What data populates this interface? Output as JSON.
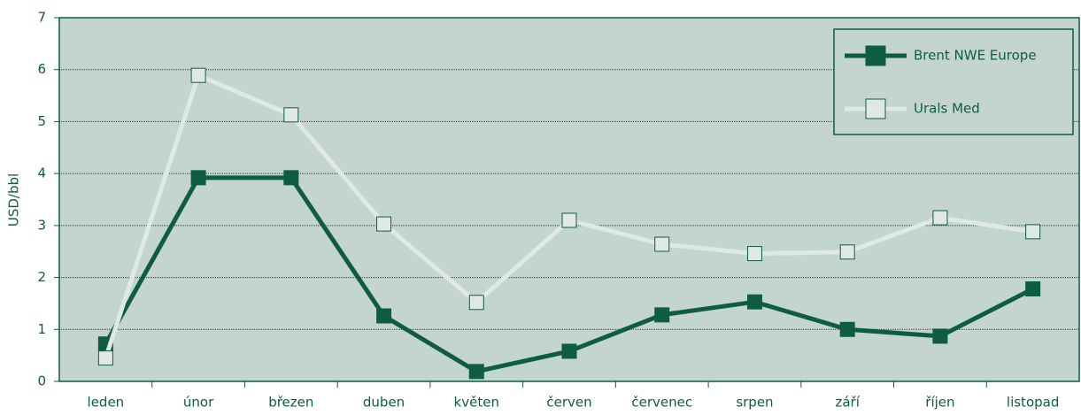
{
  "chart_data": {
    "type": "line",
    "y_label": "USD/bbl",
    "categories": [
      "leden",
      "únor",
      "březen",
      "duben",
      "květen",
      "červen",
      "červenec",
      "srpen",
      "září",
      "říjen",
      "listopad"
    ],
    "series": [
      {
        "name": "Brent NWE Europe",
        "color": "#0f5c45",
        "marker_fill": "#0f5c45",
        "values": [
          0.72,
          3.92,
          3.92,
          1.26,
          0.19,
          0.58,
          1.28,
          1.53,
          1.0,
          0.87,
          1.78
        ]
      },
      {
        "name": "Urals Med",
        "color": "#dfe8e2",
        "marker_fill": "#dfe8e2",
        "values": [
          0.45,
          5.89,
          5.13,
          3.03,
          1.52,
          3.1,
          2.64,
          2.46,
          2.49,
          3.15,
          2.88
        ]
      }
    ],
    "ylim": [
      0,
      7
    ],
    "yticks": [
      0,
      1,
      2,
      3,
      4,
      5,
      6,
      7
    ],
    "grid": true,
    "legend": "upper right"
  }
}
